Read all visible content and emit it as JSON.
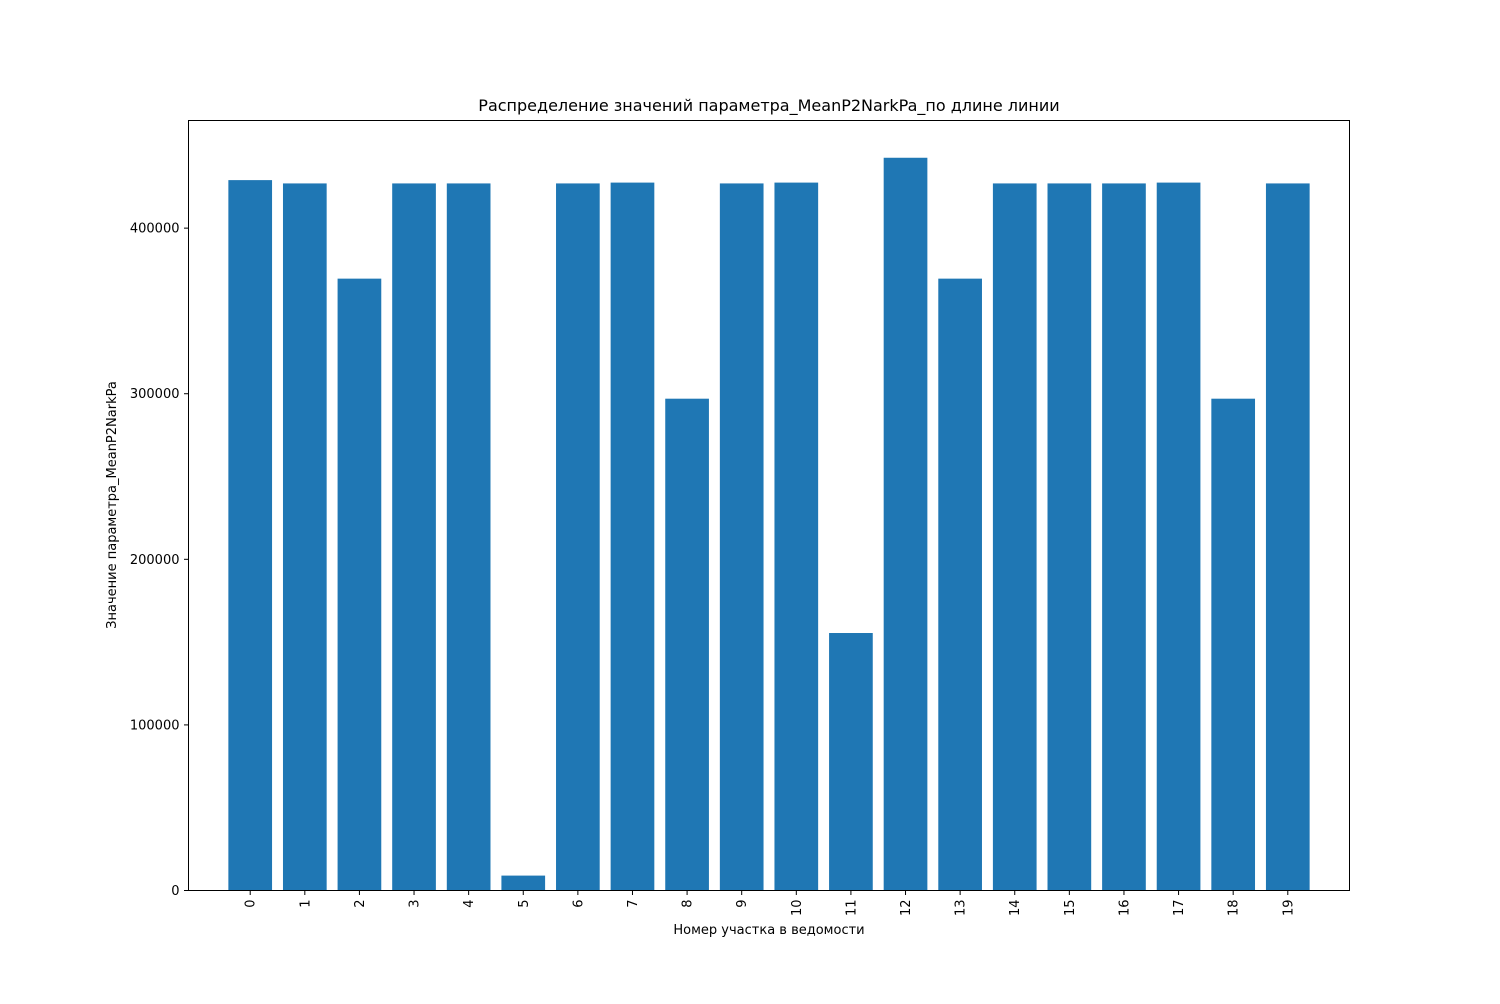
{
  "chart_data": {
    "type": "bar",
    "title": "Распределение значений параметра_MeanP2NarkPa_по длине линии",
    "xlabel": "Номер участка в ведомости",
    "ylabel": "Значение параметра_MeanP2NarkPa",
    "categories": [
      "0",
      "1",
      "2",
      "3",
      "4",
      "5",
      "6",
      "7",
      "8",
      "9",
      "10",
      "11",
      "12",
      "13",
      "14",
      "15",
      "16",
      "17",
      "18",
      "19"
    ],
    "values": [
      429000,
      427000,
      369500,
      427000,
      427000,
      9000,
      427000,
      427500,
      297000,
      427000,
      427500,
      155500,
      442500,
      369500,
      427000,
      427000,
      427000,
      427500,
      297000,
      427000
    ],
    "ylim": [
      0,
      465000
    ],
    "yticks": [
      0,
      100000,
      200000,
      300000,
      400000
    ],
    "ytick_labels": [
      "0",
      "100000",
      "200000",
      "300000",
      "400000"
    ],
    "x_tick_rotation": "vertical",
    "grid": false,
    "legend": false,
    "bar_color": "#1f77b4"
  }
}
